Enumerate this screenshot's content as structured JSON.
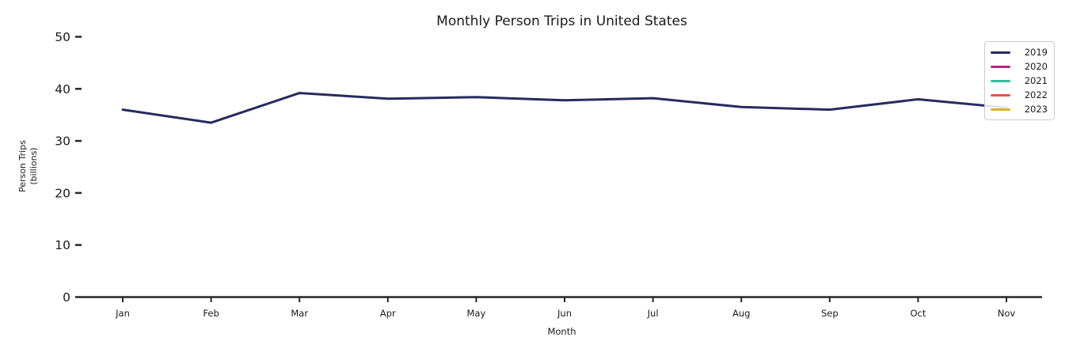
{
  "chart_data": {
    "type": "line",
    "title": "Monthly Person Trips in United States",
    "xlabel": "Month",
    "ylabel": "Person Trips (billions)",
    "ylabel_lines": [
      "Person Trips",
      "(billions)"
    ],
    "categories": [
      "Jan",
      "Feb",
      "Mar",
      "Apr",
      "May",
      "Jun",
      "Jul",
      "Aug",
      "Sep",
      "Oct",
      "Nov"
    ],
    "y_ticks": [
      0,
      10,
      20,
      30,
      40,
      50
    ],
    "ylim": [
      0,
      52.5
    ],
    "grid": false,
    "legend_position": "upper right",
    "series": [
      {
        "name": "2019",
        "color": "#262b5f",
        "values": [
          36.0,
          33.5,
          39.2,
          38.1,
          38.4,
          37.8,
          38.2,
          36.5,
          36.0,
          38.0,
          36.4
        ]
      },
      {
        "name": "2020",
        "color": "#bb2286",
        "values": []
      },
      {
        "name": "2021",
        "color": "#2cc09f",
        "values": []
      },
      {
        "name": "2022",
        "color": "#e0574b",
        "values": []
      },
      {
        "name": "2023",
        "color": "#ddb327",
        "values": []
      }
    ]
  },
  "style": {
    "axis_color": "#262626",
    "text_color": "#1a1a1a",
    "legend_border_color": "#cccccc",
    "background_color": "#ffffff"
  }
}
